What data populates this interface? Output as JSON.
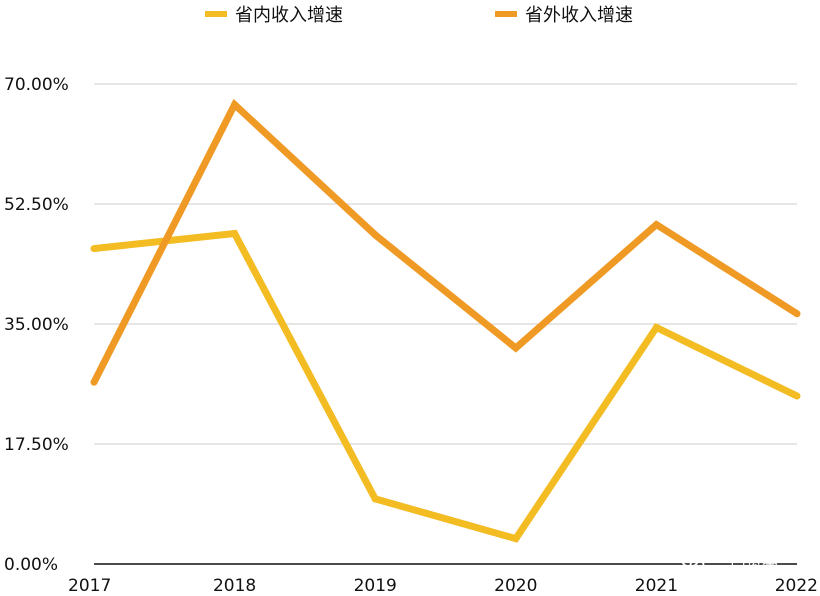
{
  "chart_data": {
    "type": "line",
    "x": [
      "2017",
      "2018",
      "2019",
      "2020",
      "2021",
      "2022"
    ],
    "ylim": [
      0,
      70
    ],
    "yticks": [
      "0.00%",
      "17.50%",
      "35.00%",
      "52.50%",
      "70.00%"
    ],
    "yticks_values": [
      0,
      17.5,
      35,
      52.5,
      70
    ],
    "grid": true,
    "legend_position": "top",
    "series": [
      {
        "name": "省内收入增速",
        "color": "#F2BC22",
        "values": [
          46.0,
          48.2,
          9.5,
          3.7,
          34.5,
          24.5
        ]
      },
      {
        "name": "省外收入增速",
        "color": "#F09A26",
        "values": [
          26.5,
          67.0,
          48.0,
          31.5,
          49.5,
          36.5
        ]
      }
    ]
  },
  "watermark": {
    "text": "三西资本",
    "icon": "wechat-icon"
  }
}
